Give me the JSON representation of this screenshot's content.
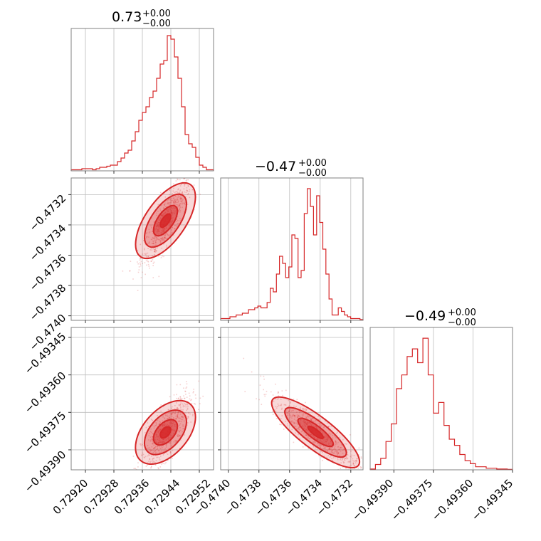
{
  "figure": {
    "type": "corner-plot"
  },
  "chart_data": [
    {
      "type": "histogram",
      "panel": "p00",
      "title": {
        "value": "0.73",
        "upper": "+0.00",
        "lower": "−0.00"
      },
      "color": "#d62728",
      "x_range": [
        0.72916,
        0.72956
      ],
      "bins_x": [
        0.72916,
        0.72917,
        0.72918,
        0.72919,
        0.7292,
        0.72921,
        0.72922,
        0.72923,
        0.72924,
        0.72925,
        0.72926,
        0.72927,
        0.72928,
        0.72929,
        0.7293,
        0.72931,
        0.72932,
        0.72933,
        0.72934,
        0.72935,
        0.72936,
        0.72937,
        0.72938,
        0.72939,
        0.7294,
        0.72941,
        0.72942,
        0.72943,
        0.72944,
        0.72945,
        0.72946,
        0.72947,
        0.72948,
        0.72949,
        0.7295,
        0.72951,
        0.72952,
        0.72953,
        0.72954,
        0.72955
      ],
      "counts": [
        0.3,
        0.3,
        0.3,
        0.6,
        0.6,
        0.6,
        0.3,
        0.6,
        1.0,
        1.0,
        1.3,
        1.6,
        1.6,
        2.6,
        3.6,
        5.0,
        5.8,
        8.4,
        11.0,
        14.2,
        16.4,
        18.0,
        20.6,
        22.4,
        26.0,
        30.0,
        31.0,
        38.0,
        37.0,
        32.0,
        26.0,
        18.0,
        10.2,
        7.6,
        6.6,
        3.8,
        1.6,
        1.0,
        0.3,
        0.3
      ],
      "ymax": 40,
      "x_ticks": [
        0.7292,
        0.72928,
        0.72936,
        0.72944,
        0.72952
      ]
    },
    {
      "type": "histogram",
      "panel": "p11",
      "title": {
        "value": "−0.47",
        "upper": "+0.00",
        "lower": "−0.00"
      },
      "color": "#d62728",
      "x_range": [
        -0.47405,
        -0.47312
      ],
      "bins_x": [
        -0.47405,
        -0.47403,
        -0.47401,
        -0.47399,
        -0.47397,
        -0.47395,
        -0.47393,
        -0.47391,
        -0.47389,
        -0.47387,
        -0.47385,
        -0.47383,
        -0.47381,
        -0.47379,
        -0.47377,
        -0.47375,
        -0.47373,
        -0.47371,
        -0.47369,
        -0.47367,
        -0.47365,
        -0.47363,
        -0.47361,
        -0.47359,
        -0.47357,
        -0.47355,
        -0.47353,
        -0.47351,
        -0.47349,
        -0.47347,
        -0.47345,
        -0.47343,
        -0.47341,
        -0.47339,
        -0.47337,
        -0.47335,
        -0.47333,
        -0.47331,
        -0.47329,
        -0.47327,
        -0.47325,
        -0.47323,
        -0.47321,
        -0.47319,
        -0.47317,
        -0.47315
      ],
      "counts": [
        1,
        1,
        1,
        2,
        2,
        3,
        3,
        4,
        4,
        6,
        6,
        7,
        8,
        7,
        7,
        10,
        18,
        16,
        26,
        36,
        32,
        24,
        30,
        48,
        46,
        24,
        28,
        60,
        74,
        64,
        48,
        70,
        55,
        40,
        26,
        12,
        3,
        3,
        7,
        5,
        3,
        2,
        1,
        1,
        1,
        0.5
      ],
      "ymax": 80,
      "x_ticks": [
        -0.474,
        -0.4738,
        -0.4736,
        -0.4734,
        -0.4732
      ]
    },
    {
      "type": "histogram",
      "panel": "p22",
      "title": {
        "value": "−0.49",
        "upper": "+0.00",
        "lower": "−0.00"
      },
      "color": "#d62728",
      "x_range": [
        -0.49399,
        -0.49345
      ],
      "bins_x": [
        -0.49399,
        -0.49397,
        -0.49395,
        -0.49393,
        -0.49391,
        -0.49389,
        -0.49387,
        -0.49385,
        -0.49383,
        -0.49381,
        -0.49379,
        -0.49377,
        -0.49375,
        -0.49373,
        -0.49371,
        -0.49369,
        -0.49367,
        -0.49365,
        -0.49363,
        -0.49361,
        -0.49359,
        -0.49357,
        -0.49355,
        -0.49353,
        -0.49351,
        -0.49349,
        -0.49347
      ],
      "counts": [
        0.5,
        3.5,
        7.5,
        18.5,
        30,
        53,
        62,
        74,
        79,
        70,
        86,
        62,
        37,
        44,
        29,
        20,
        16,
        10,
        6,
        4,
        2,
        2,
        1,
        1,
        0.5,
        0.5,
        0.3
      ],
      "ymax": 93,
      "x_ticks": [
        -0.4939,
        -0.49375,
        -0.4936,
        -0.49345
      ]
    },
    {
      "type": "scatter-contour",
      "panel": "p10",
      "color": "#d62728",
      "x_range": [
        0.72916,
        0.72956
      ],
      "y_range": [
        -0.47403,
        -0.47309
      ],
      "center": [
        0.729425,
        -0.473372
      ],
      "x_ticks": [
        0.7292,
        0.72928,
        0.72936,
        0.72944,
        0.72952
      ],
      "y_ticks": [
        -0.4732,
        -0.4734,
        -0.4736,
        -0.4738,
        -0.474
      ]
    },
    {
      "type": "scatter-contour",
      "panel": "p20",
      "color": "#d62728",
      "x_range": [
        0.72916,
        0.72956
      ],
      "y_range": [
        -0.49398,
        -0.49341
      ],
      "center": [
        0.729425,
        -0.49383
      ],
      "x_ticks": [
        0.7292,
        0.72928,
        0.72936,
        0.72944,
        0.72952
      ],
      "y_ticks": [
        -0.49345,
        -0.4936,
        -0.49375,
        -0.4939
      ]
    },
    {
      "type": "scatter-contour",
      "panel": "p21",
      "color": "#d62728",
      "x_range": [
        -0.47405,
        -0.47312
      ],
      "y_range": [
        -0.49398,
        -0.49341
      ],
      "center": [
        -0.47343,
        -0.49383
      ],
      "x_ticks": [
        -0.474,
        -0.4738,
        -0.4736,
        -0.4734,
        -0.4732
      ],
      "y_ticks": [
        -0.49345,
        -0.4936,
        -0.49375,
        -0.4939
      ]
    }
  ],
  "axis_labels": {
    "x0": [
      "0.72920",
      "0.72928",
      "0.72936",
      "0.72944",
      "0.72952"
    ],
    "x1": [
      "−0.4740",
      "−0.4738",
      "−0.4736",
      "−0.4734",
      "−0.4732"
    ],
    "x2": [
      "−0.49390",
      "−0.49375",
      "−0.49360",
      "−0.49345"
    ],
    "y1": [
      "−0.4732",
      "−0.4734",
      "−0.4736",
      "−0.4738",
      "−0.4740"
    ],
    "y2": [
      "−0.49345",
      "−0.49360",
      "−0.49375",
      "−0.49390"
    ]
  }
}
